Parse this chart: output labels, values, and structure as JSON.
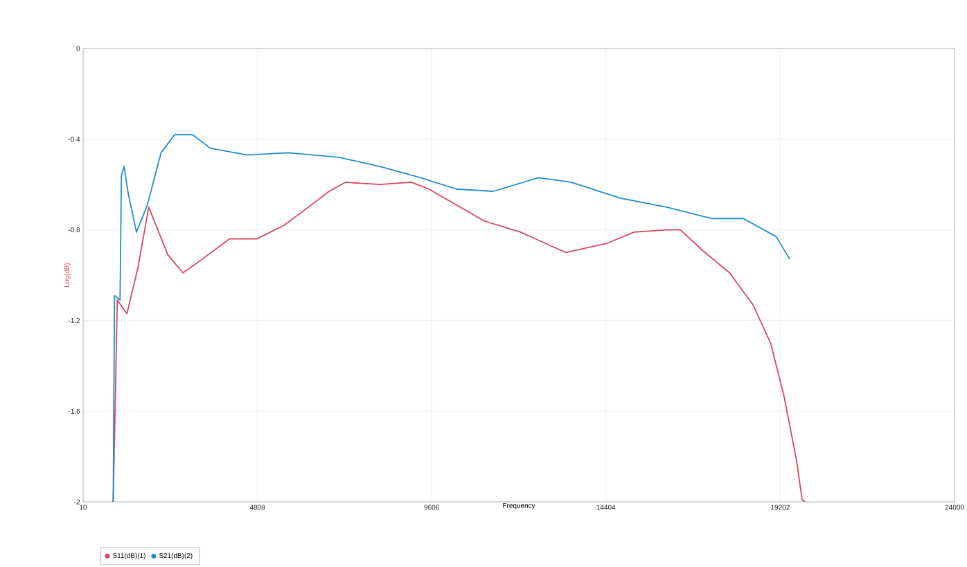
{
  "chart_data": {
    "type": "line",
    "xlabel": "Frequency",
    "ylabel": "Log(dB)",
    "xlim": [
      10,
      24000
    ],
    "xticks": [
      10,
      4808,
      9606,
      14404,
      19202,
      24000
    ],
    "ylim": [
      -2,
      0
    ],
    "yticks": [
      -2,
      -1.6,
      -1.2,
      -0.8,
      -0.4,
      0
    ],
    "grid": true,
    "legend": "bottom",
    "marker": "none",
    "line_style": "solid",
    "series": [
      {
        "name": "S11(dB)(1)",
        "color": "#d9455f",
        "x": [
          838,
          951,
          1214,
          1515,
          1816,
          2343,
          2757,
          3284,
          4036,
          4789,
          5542,
          6294,
          6783,
          7235,
          8176,
          9041,
          9530,
          10283,
          11036,
          12052,
          13293,
          14422,
          15175,
          16078,
          16454,
          17056,
          17809,
          18449,
          18938,
          19314,
          19653,
          19803,
          19878
        ],
        "values": [
          -2,
          -1.11,
          -1.17,
          -0.97,
          -0.7,
          -0.91,
          -0.99,
          -0.93,
          -0.84,
          -0.84,
          -0.78,
          -0.69,
          -0.63,
          -0.59,
          -0.6,
          -0.59,
          -0.62,
          -0.69,
          -0.76,
          -0.81,
          -0.9,
          -0.86,
          -0.81,
          -0.8,
          -0.8,
          -0.89,
          -0.99,
          -1.13,
          -1.3,
          -1.54,
          -1.82,
          -1.99,
          -2
        ]
      },
      {
        "name": "S21(dB)(2)",
        "color": "#1f8dc9",
        "x": [
          838,
          875,
          1026,
          1064,
          1139,
          1252,
          1478,
          1779,
          2155,
          2531,
          3020,
          3510,
          4526,
          5655,
          7047,
          8176,
          9305,
          10283,
          11299,
          12541,
          13444,
          14799,
          16078,
          17320,
          18186,
          19089,
          19465
        ],
        "values": [
          -2,
          -1.09,
          -1.11,
          -0.56,
          -0.52,
          -0.64,
          -0.81,
          -0.69,
          -0.46,
          -0.38,
          -0.38,
          -0.44,
          -0.47,
          -0.46,
          -0.48,
          -0.52,
          -0.57,
          -0.62,
          -0.63,
          -0.57,
          -0.59,
          -0.66,
          -0.7,
          -0.75,
          -0.75,
          -0.83,
          -0.93
        ]
      }
    ]
  }
}
